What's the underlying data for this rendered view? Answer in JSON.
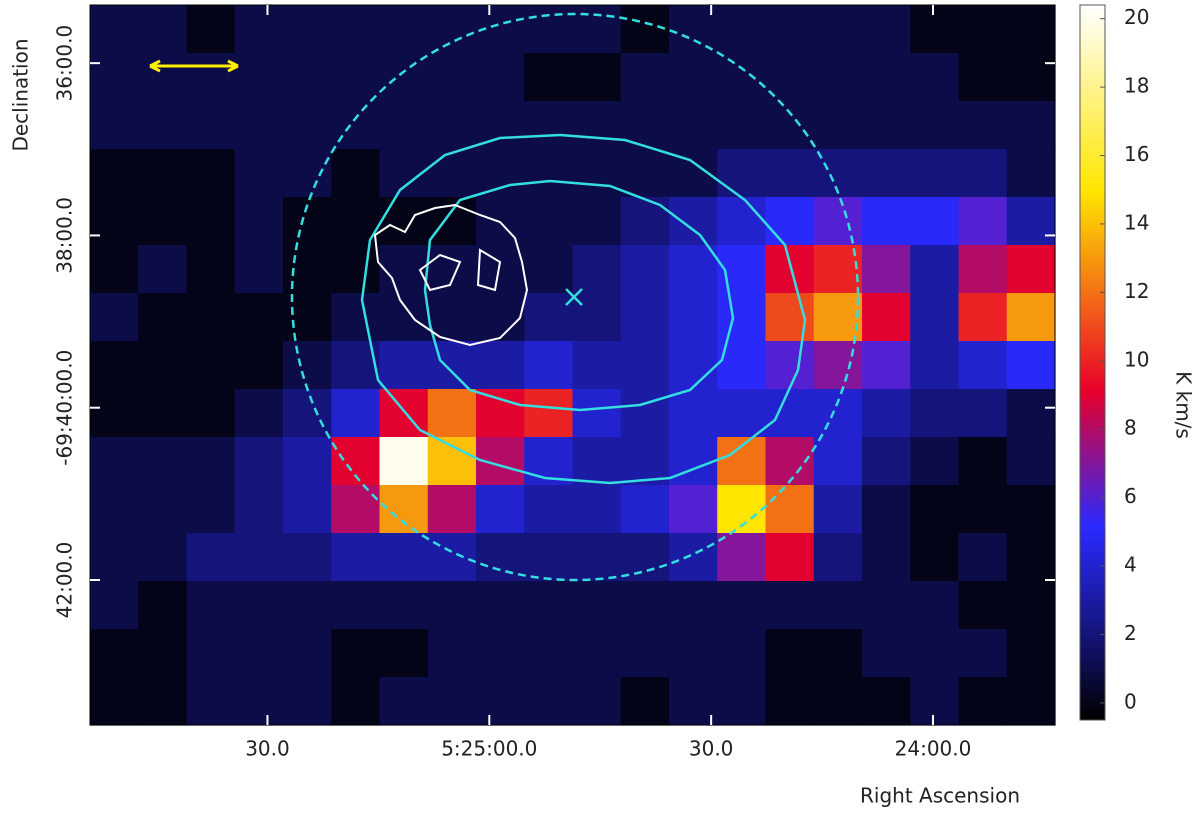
{
  "chart_data": {
    "type": "heatmap",
    "xlabel": "Right Ascension",
    "ylabel": "Declination",
    "colorbar_label": "K km/s",
    "xlim": [
      19554,
      19423.5
    ],
    "xticks": [
      {
        "value": 19530,
        "label": "30.0"
      },
      {
        "value": 19500,
        "label": "5:25:00.0"
      },
      {
        "value": 19470,
        "label": "30.0"
      },
      {
        "value": 19440,
        "label": "24:00.0"
      }
    ],
    "ylim": [
      -251021,
      -250519.5
    ],
    "yticks": [
      {
        "value": -250560,
        "label": "36:00.0"
      },
      {
        "value": -250680,
        "label": "38:00.0"
      },
      {
        "value": -250800,
        "label": "-69:40:00.0"
      },
      {
        "value": -250920,
        "label": "42:00.0"
      }
    ],
    "zlim": [
      -0.5,
      20.4
    ],
    "zticks": [
      0,
      2,
      4,
      6,
      8,
      10,
      12,
      14,
      16,
      18,
      20
    ],
    "colormap": [
      "#000000",
      "#14147a",
      "#2a2aff",
      "#e8002a",
      "#ffe600",
      "#ffffff"
    ],
    "z": [
      [
        1,
        1,
        0,
        1,
        1,
        1,
        1,
        1,
        1,
        1,
        1,
        0,
        1,
        1,
        1,
        1,
        1,
        0,
        0,
        0
      ],
      [
        1,
        1,
        1,
        1,
        1,
        1,
        1,
        1,
        1,
        0,
        0,
        1,
        1,
        1,
        1,
        1,
        1,
        1,
        0,
        0
      ],
      [
        1,
        1,
        1,
        1,
        1,
        1,
        1,
        1,
        1,
        1,
        1,
        1,
        1,
        1,
        1,
        1,
        1,
        1,
        1,
        1
      ],
      [
        0,
        0,
        0,
        1,
        1,
        0,
        1,
        1,
        1,
        1,
        1,
        1,
        1,
        2,
        2,
        2,
        2,
        2,
        2,
        1
      ],
      [
        0,
        0,
        0,
        1,
        0,
        0,
        0,
        0,
        1,
        1,
        1,
        2,
        3,
        4,
        5,
        6,
        5,
        5,
        6,
        3
      ],
      [
        0,
        1,
        0,
        1,
        0,
        0,
        1,
        1,
        1,
        1,
        2,
        3,
        4,
        5,
        9,
        10,
        7,
        3,
        8,
        9
      ],
      [
        1,
        0,
        0,
        0,
        0,
        1,
        1,
        1,
        1,
        2,
        2,
        3,
        4,
        5,
        11,
        13,
        9,
        3,
        10,
        13
      ],
      [
        0,
        0,
        0,
        0,
        1,
        2,
        3,
        3,
        3,
        4,
        3,
        3,
        4,
        5,
        6,
        7,
        6,
        3,
        4,
        5
      ],
      [
        0,
        0,
        0,
        1,
        2,
        4,
        9,
        12,
        9,
        10,
        4,
        3,
        4,
        4,
        4,
        4,
        3,
        2,
        2,
        1
      ],
      [
        1,
        1,
        1,
        2,
        3,
        9,
        20,
        14,
        8,
        4,
        3,
        3,
        4,
        12,
        8,
        4,
        2,
        1,
        0,
        1
      ],
      [
        1,
        1,
        1,
        2,
        3,
        8,
        13,
        8,
        4,
        3,
        3,
        4,
        6,
        15,
        12,
        3,
        1,
        0,
        0,
        0
      ],
      [
        1,
        1,
        2,
        2,
        2,
        3,
        3,
        3,
        2,
        2,
        2,
        2,
        3,
        7,
        9,
        2,
        1,
        0,
        1,
        0
      ],
      [
        1,
        0,
        1,
        1,
        1,
        1,
        1,
        1,
        1,
        1,
        1,
        1,
        1,
        1,
        1,
        1,
        1,
        1,
        0,
        0
      ],
      [
        0,
        0,
        1,
        1,
        1,
        0,
        0,
        1,
        1,
        1,
        1,
        1,
        1,
        1,
        0,
        0,
        1,
        1,
        1,
        0
      ],
      [
        0,
        0,
        1,
        1,
        1,
        0,
        1,
        1,
        1,
        1,
        1,
        0,
        1,
        1,
        0,
        0,
        0,
        1,
        0,
        0
      ]
    ]
  }
}
